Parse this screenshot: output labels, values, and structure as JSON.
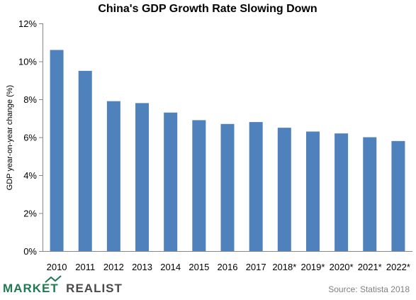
{
  "chart_data": {
    "type": "bar",
    "title": "China's GDP Growth Rate Slowing Down",
    "xlabel": "",
    "ylabel": "GDP year-on-year change (%)",
    "categories": [
      "2010",
      "2011",
      "2012",
      "2013",
      "2014",
      "2015",
      "2016",
      "2017",
      "2018*",
      "2019*",
      "2020*",
      "2021*",
      "2022*"
    ],
    "values": [
      10.6,
      9.5,
      7.9,
      7.8,
      7.3,
      6.9,
      6.7,
      6.8,
      6.5,
      6.3,
      6.2,
      6.0,
      5.8
    ],
    "ylim": [
      0,
      12
    ],
    "yticks": [
      0,
      2,
      4,
      6,
      8,
      10,
      12
    ],
    "ytick_labels": [
      "0%",
      "2%",
      "4%",
      "6%",
      "8%",
      "10%",
      "12%"
    ],
    "bar_color": "#4f81bd",
    "grid": false,
    "legend": "none"
  },
  "footer": {
    "brand_part1": "MARKET",
    "brand_part2": "REALIST",
    "source": "Source: Statista 2018"
  },
  "colors": {
    "brand_green": "#1f7a52",
    "brand_gray": "#4a4a4a"
  }
}
